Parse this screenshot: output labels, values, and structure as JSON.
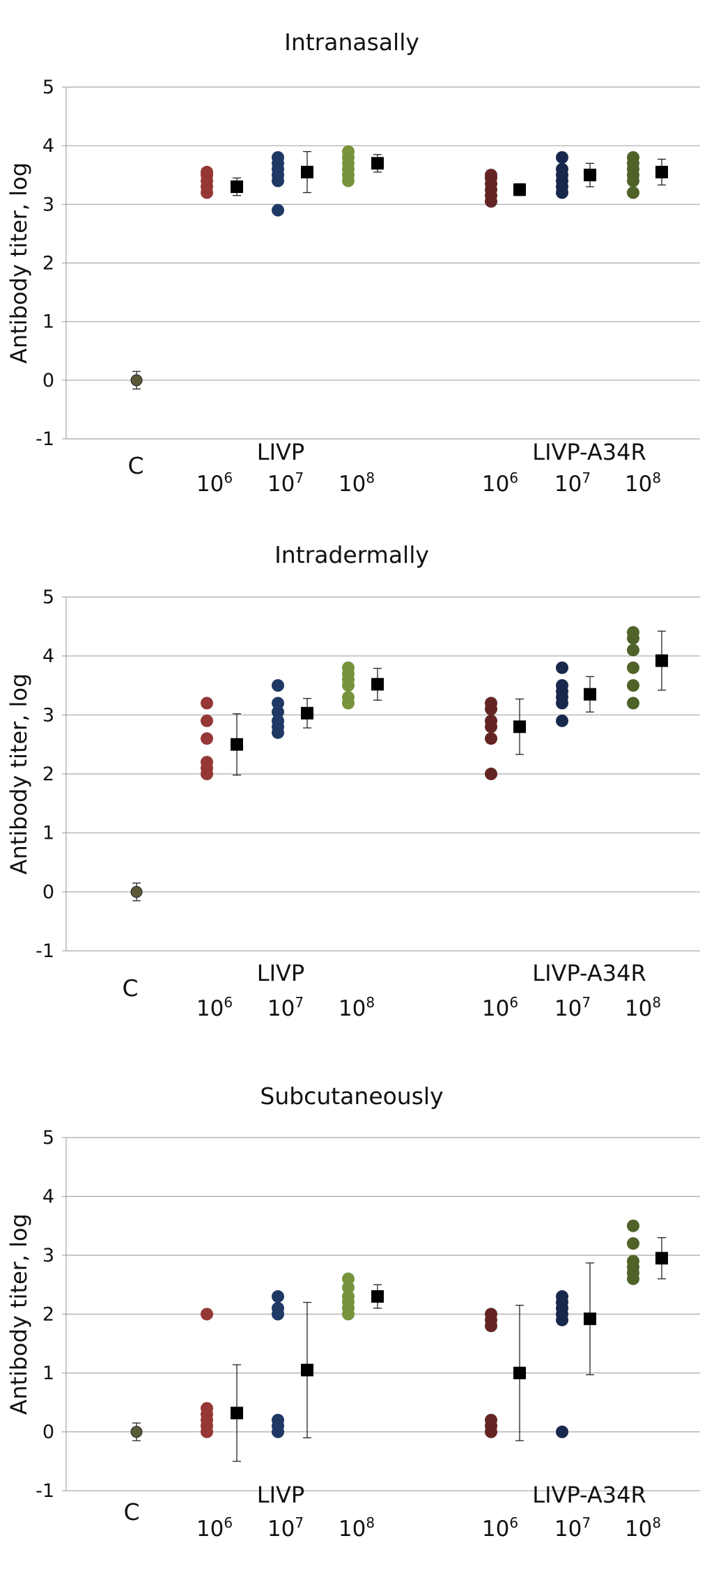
{
  "chart_data": [
    {
      "type": "scatter",
      "title": "Intranasally",
      "ylabel": "Antibody titer, log",
      "ylim": [
        -1,
        5
      ],
      "yticks": [
        -1,
        0,
        1,
        2,
        3,
        4,
        5
      ],
      "grid": true,
      "control": {
        "label": "C",
        "mean": 0,
        "error": 0.15
      },
      "groups": [
        {
          "name": "LIVP",
          "doses": [
            {
              "label": "106",
              "color": "#953735",
              "points": [
                3.2,
                3.3,
                3.4,
                3.5,
                3.55
              ],
              "mean": 3.3,
              "error": 0.15
            },
            {
              "label": "107",
              "color": "#1f3864",
              "points": [
                2.9,
                3.4,
                3.5,
                3.6,
                3.7,
                3.8
              ],
              "mean": 3.55,
              "error": 0.35
            },
            {
              "label": "108",
              "color": "#77933c",
              "points": [
                3.4,
                3.5,
                3.6,
                3.7,
                3.8,
                3.9
              ],
              "mean": 3.7,
              "error": 0.15
            }
          ]
        },
        {
          "name": "LIVP-A34R",
          "doses": [
            {
              "label": "106",
              "color": "#632523",
              "points": [
                3.05,
                3.15,
                3.25,
                3.35,
                3.45,
                3.5
              ],
              "mean": 3.25,
              "error": 0.1
            },
            {
              "label": "107",
              "color": "#17284c",
              "points": [
                3.2,
                3.3,
                3.4,
                3.5,
                3.6,
                3.8
              ],
              "mean": 3.5,
              "error": 0.2
            },
            {
              "label": "108",
              "color": "#4f6228",
              "points": [
                3.2,
                3.4,
                3.5,
                3.6,
                3.7,
                3.8
              ],
              "mean": 3.55,
              "error": 0.22
            }
          ]
        }
      ]
    },
    {
      "type": "scatter",
      "title": "Intradermally",
      "ylabel": "Antibody titer, log",
      "ylim": [
        -1,
        5
      ],
      "yticks": [
        -1,
        0,
        1,
        2,
        3,
        4,
        5
      ],
      "grid": true,
      "control": {
        "label": "C",
        "mean": 0,
        "error": 0.15
      },
      "groups": [
        {
          "name": "LIVP",
          "doses": [
            {
              "label": "106",
              "color": "#953735",
              "points": [
                2.0,
                2.1,
                2.2,
                2.6,
                2.9,
                3.2
              ],
              "mean": 2.5,
              "error": 0.52
            },
            {
              "label": "107",
              "color": "#1f3864",
              "points": [
                2.7,
                2.8,
                2.9,
                3.05,
                3.2,
                3.5
              ],
              "mean": 3.03,
              "error": 0.25
            },
            {
              "label": "108",
              "color": "#77933c",
              "points": [
                3.2,
                3.3,
                3.5,
                3.6,
                3.7,
                3.8
              ],
              "mean": 3.52,
              "error": 0.27
            }
          ]
        },
        {
          "name": "LIVP-A34R",
          "doses": [
            {
              "label": "106",
              "color": "#632523",
              "points": [
                2.0,
                2.6,
                2.8,
                2.9,
                3.1,
                3.2
              ],
              "mean": 2.8,
              "error": 0.47
            },
            {
              "label": "107",
              "color": "#17284c",
              "points": [
                2.9,
                3.2,
                3.3,
                3.4,
                3.5,
                3.8
              ],
              "mean": 3.35,
              "error": 0.3
            },
            {
              "label": "108",
              "color": "#4f6228",
              "points": [
                3.2,
                3.5,
                3.8,
                4.1,
                4.3,
                4.4
              ],
              "mean": 3.92,
              "error": 0.5
            }
          ]
        }
      ]
    },
    {
      "type": "scatter",
      "title": "Subcutaneously",
      "ylabel": "Antibody titer, log",
      "ylim": [
        -1,
        5
      ],
      "yticks": [
        -1,
        0,
        1,
        2,
        3,
        4,
        5
      ],
      "grid": true,
      "control": {
        "label": "C",
        "mean": 0,
        "error": 0.15
      },
      "groups": [
        {
          "name": "LIVP",
          "doses": [
            {
              "label": "106",
              "color": "#953735",
              "points": [
                0.0,
                0.1,
                0.2,
                0.3,
                0.4,
                2.0
              ],
              "mean": 0.32,
              "error": 0.82
            },
            {
              "label": "107",
              "color": "#1f3864",
              "points": [
                0.0,
                0.1,
                0.2,
                2.0,
                2.1,
                2.3
              ],
              "mean": 1.05,
              "error": 1.15
            },
            {
              "label": "108",
              "color": "#77933c",
              "points": [
                2.0,
                2.1,
                2.2,
                2.3,
                2.45,
                2.6
              ],
              "mean": 2.3,
              "error": 0.2
            }
          ]
        },
        {
          "name": "LIVP-A34R",
          "doses": [
            {
              "label": "106",
              "color": "#632523",
              "points": [
                0.0,
                0.1,
                0.2,
                1.8,
                1.9,
                2.0
              ],
              "mean": 1.0,
              "error": 1.15
            },
            {
              "label": "107",
              "color": "#17284c",
              "points": [
                0.0,
                1.9,
                2.0,
                2.1,
                2.2,
                2.3
              ],
              "mean": 1.92,
              "error": 0.95
            },
            {
              "label": "108",
              "color": "#4f6228",
              "points": [
                2.6,
                2.7,
                2.8,
                2.9,
                3.2,
                3.5
              ],
              "mean": 2.95,
              "error": 0.35
            }
          ]
        }
      ]
    }
  ]
}
